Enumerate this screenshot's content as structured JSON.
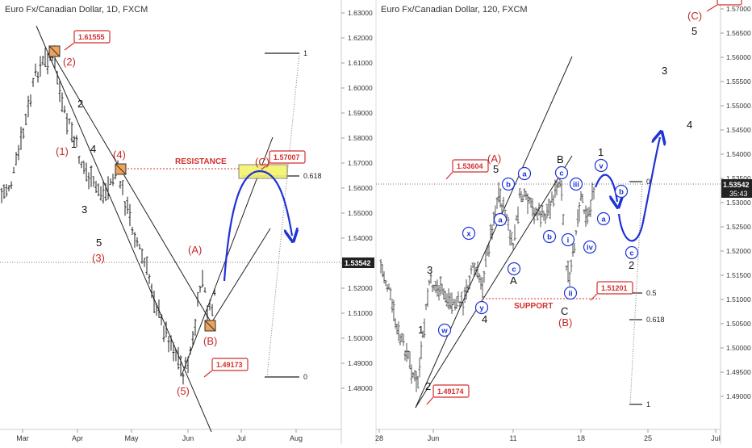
{
  "chart_data": [
    {
      "type": "line",
      "title": "Euro Fx/Canadian Dollar, 1D, FXCM",
      "x_ticks": [
        "Mar",
        "Apr",
        "May",
        "Jun",
        "Jul",
        "Aug"
      ],
      "y_ticks": [
        "1.63000",
        "1.62000",
        "1.61000",
        "1.60000",
        "1.59000",
        "1.58000",
        "1.57000",
        "1.56000",
        "1.55000",
        "1.54000",
        "1.53000",
        "1.52000",
        "1.51000",
        "1.50000",
        "1.49000",
        "1.48000"
      ],
      "ylim": [
        1.4775,
        1.6323
      ],
      "last_price": "1.53542",
      "annotations": {
        "price_boxes": [
          "1.61555",
          "1.57007",
          "1.49173"
        ],
        "resistance": "RESISTANCE",
        "waves": [
          "(1)",
          "(2)",
          "(3)",
          "(4)",
          "(5)",
          "(A)",
          "(B)",
          "(C)",
          "1",
          "2",
          "3",
          "4",
          "5"
        ],
        "fib_levels": [
          "1",
          "0.618",
          "0"
        ]
      }
    },
    {
      "type": "line",
      "title": "Euro Fx/Canadian Dollar, 120, FXCM",
      "x_ticks": [
        "28",
        "Jun",
        "11",
        "18",
        "25",
        "Jul"
      ],
      "y_ticks": [
        "1.57000",
        "1.56500",
        "1.56000",
        "1.55500",
        "1.55000",
        "1.54500",
        "1.54000",
        "1.53500",
        "1.53000",
        "1.52500",
        "1.52000",
        "1.51500",
        "1.51000",
        "1.50500",
        "1.50000",
        "1.49500",
        "1.49000"
      ],
      "ylim": [
        1.4867,
        1.5727
      ],
      "last_price": "1.53542",
      "countdown": "35:43",
      "annotations": {
        "price_boxes": [
          "1.53604",
          "1.51201",
          "1.49174"
        ],
        "support": "SUPPORT",
        "waves_major": [
          "(A)",
          "(B)",
          "(C)",
          "A",
          "B",
          "C",
          "1",
          "2",
          "3",
          "4",
          "5"
        ],
        "waves_minor": [
          "w",
          "x",
          "y",
          "a",
          "b",
          "c",
          "i",
          "ii",
          "iii",
          "iv",
          "v"
        ],
        "fib_levels": [
          "0",
          "0.5",
          "0.618",
          "1"
        ]
      }
    }
  ]
}
